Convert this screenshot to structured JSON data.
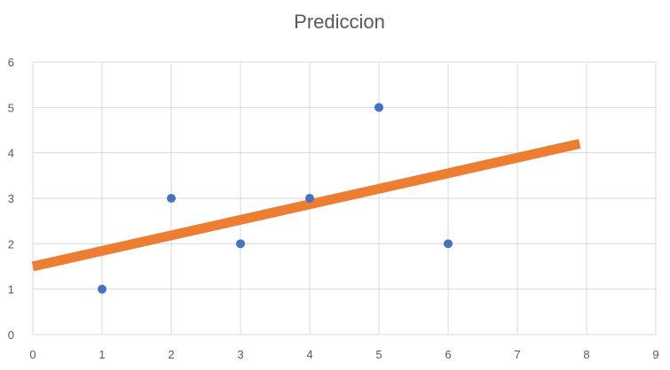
{
  "chart_data": {
    "type": "scatter",
    "title": "Prediccion",
    "xlabel": "",
    "ylabel": "",
    "xlim": [
      0,
      9
    ],
    "ylim": [
      0,
      6
    ],
    "x_ticks": [
      0,
      1,
      2,
      3,
      4,
      5,
      6,
      7,
      8,
      9
    ],
    "y_ticks": [
      0,
      1,
      2,
      3,
      4,
      5,
      6
    ],
    "grid": true,
    "legend": "none",
    "series": [
      {
        "kind": "scatter",
        "color": "#4472C4",
        "points": [
          {
            "x": 1,
            "y": 1
          },
          {
            "x": 2,
            "y": 3
          },
          {
            "x": 3,
            "y": 2
          },
          {
            "x": 4,
            "y": 3
          },
          {
            "x": 5,
            "y": 5
          },
          {
            "x": 6,
            "y": 2
          }
        ]
      },
      {
        "kind": "trend",
        "color": "#ED7D31",
        "from": {
          "x": 0,
          "y": 1.5
        },
        "to": {
          "x": 7.9,
          "y": 4.2
        }
      }
    ]
  }
}
